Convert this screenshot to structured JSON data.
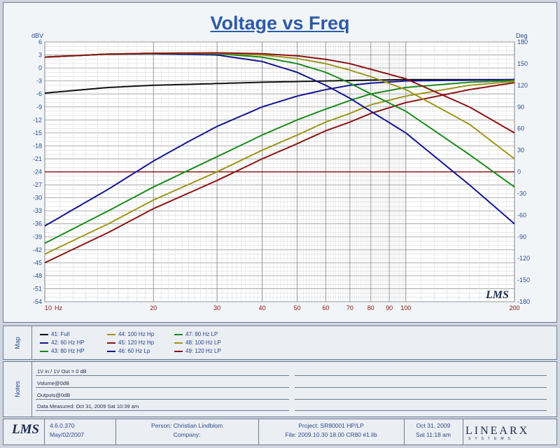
{
  "chart_data": {
    "type": "line",
    "title": "Voltage vs Freq",
    "ylabel_left": "dBV",
    "ylabel_right": "Deg",
    "xlim": [
      10,
      200
    ],
    "xscale": "log",
    "ylim": [
      -54,
      6
    ],
    "y2lim": [
      -180,
      180
    ],
    "y_ticks": [
      6,
      3,
      0,
      -3,
      -6,
      -9,
      -12,
      -15,
      -18,
      -21,
      -24,
      -27,
      -30,
      -33,
      -36,
      -39,
      -42,
      -45,
      -48,
      -51,
      -54
    ],
    "y_tick_labels": [
      "6",
      "3",
      "0",
      "-3",
      "-6",
      "-9",
      "-12",
      "-15",
      "-18",
      "-21",
      "-24",
      "-27",
      "-30",
      "-33",
      "-36",
      "-39",
      "-42",
      "-45",
      "-48",
      "-51",
      "-54"
    ],
    "y2_ticks": [
      180,
      150,
      120,
      90,
      60,
      30,
      0,
      -30,
      -60,
      -90,
      -120,
      -150,
      -180
    ],
    "y2_tick_labels": [
      "180",
      "150",
      "120",
      "90",
      "60",
      "30",
      "0",
      "-30",
      "-60",
      "-90",
      "-120",
      "-150",
      "-180"
    ],
    "x_ticks": [
      10,
      20,
      30,
      40,
      50,
      60,
      70,
      80,
      90,
      100,
      200
    ],
    "x_tick_labels": [
      "10",
      "20",
      "30",
      "40",
      "50",
      "60",
      "70",
      "80",
      "90",
      "100",
      "200"
    ],
    "x_unit": "Hz",
    "grid": true,
    "series": [
      {
        "name": "41: Full",
        "color": "#111111",
        "x": [
          10,
          15,
          20,
          30,
          40,
          60,
          80,
          100,
          150,
          200
        ],
        "y": [
          -5.8,
          -4.5,
          -4.0,
          -3.6,
          -3.3,
          -3.0,
          -2.8,
          -2.7,
          -2.7,
          -2.7
        ]
      },
      {
        "name": "42: 60 Hz HP",
        "color": "#15158f",
        "x": [
          10,
          15,
          20,
          25,
          30,
          40,
          50,
          60,
          70,
          80,
          100,
          150,
          200
        ],
        "y": [
          -36.5,
          -28,
          -21.5,
          -17,
          -13.5,
          -9,
          -6.5,
          -5,
          -4,
          -3.5,
          -3,
          -2.8,
          -2.7
        ]
      },
      {
        "name": "43: 80 Hz HP",
        "color": "#1c8a1c",
        "x": [
          10,
          15,
          20,
          30,
          40,
          50,
          60,
          70,
          80,
          100,
          150,
          200
        ],
        "y": [
          -40.5,
          -33,
          -27.5,
          -20.5,
          -15.5,
          -12,
          -9.5,
          -7.5,
          -6,
          -4.5,
          -3.3,
          -2.9
        ]
      },
      {
        "name": "44: 100 Hz Hp",
        "color": "#9c961b",
        "x": [
          10,
          15,
          20,
          30,
          40,
          50,
          60,
          70,
          80,
          100,
          150,
          200
        ],
        "y": [
          -43,
          -36,
          -30.5,
          -24,
          -19,
          -15.5,
          -12.5,
          -10.5,
          -8.5,
          -6.5,
          -4,
          -3.1
        ]
      },
      {
        "name": "45: 120 Hz Hp",
        "color": "#8a1414",
        "x": [
          10,
          15,
          20,
          30,
          40,
          50,
          60,
          70,
          80,
          100,
          150,
          200
        ],
        "y": [
          -45,
          -38,
          -32.5,
          -26,
          -21,
          -17.5,
          -14.5,
          -12.5,
          -10.5,
          -8,
          -5,
          -3.4
        ]
      },
      {
        "name": "46: 60 Hz Lp",
        "color": "#15158f",
        "x": [
          10,
          15,
          20,
          30,
          40,
          50,
          60,
          70,
          80,
          100,
          150,
          200
        ],
        "y": [
          2.5,
          3.2,
          3.3,
          3.0,
          1.5,
          -1.0,
          -4.0,
          -7.0,
          -10,
          -15,
          -27,
          -36
        ]
      },
      {
        "name": "47: 80 Hz LP",
        "color": "#1c8a1c",
        "x": [
          10,
          15,
          20,
          30,
          40,
          50,
          60,
          70,
          80,
          100,
          150,
          200
        ],
        "y": [
          2.5,
          3.2,
          3.4,
          3.3,
          2.5,
          1.0,
          -1.0,
          -3.5,
          -6,
          -10,
          -20,
          -27.5
        ]
      },
      {
        "name": "48: 100 Hz LP",
        "color": "#9c961b",
        "x": [
          10,
          15,
          20,
          30,
          40,
          50,
          60,
          70,
          80,
          100,
          150,
          200
        ],
        "y": [
          2.5,
          3.2,
          3.4,
          3.4,
          3.0,
          2.2,
          1.0,
          -0.5,
          -2,
          -5,
          -13,
          -21
        ]
      },
      {
        "name": "49: 120 Hz LP",
        "color": "#8a1414",
        "x": [
          10,
          15,
          20,
          30,
          40,
          50,
          60,
          70,
          80,
          100,
          150,
          200
        ],
        "y": [
          2.5,
          3.2,
          3.4,
          3.5,
          3.3,
          2.8,
          2.0,
          1.0,
          -0.3,
          -2.5,
          -9,
          -15
        ]
      }
    ],
    "reference_line": {
      "y": -24,
      "color": "#8a1414"
    }
  },
  "map_label": "Map",
  "notes_label": "Notes",
  "notes": [
    "1V in / 1V Out = 0 dB",
    "Volume@0dB",
    "Outputs@0dB",
    "Data Measured: Oct 31, 2009  Sat 10:39 am"
  ],
  "footer": {
    "version": "4.6.0.370",
    "version_date": "May/02/2007",
    "person": "Person: Christian Lindblom",
    "company": "Company:",
    "project": "Project: SR80001 HP/LP",
    "file": "File: 2009.10.30 18.00 CR80 #1.lib",
    "date": "Oct 31, 2009",
    "time": "Sat 11:18 am",
    "lms_logo": "LMS",
    "linearx_logo": "LINEARX",
    "linearx_sub": "SYSTEMS"
  },
  "plot_watermark": "LMS"
}
